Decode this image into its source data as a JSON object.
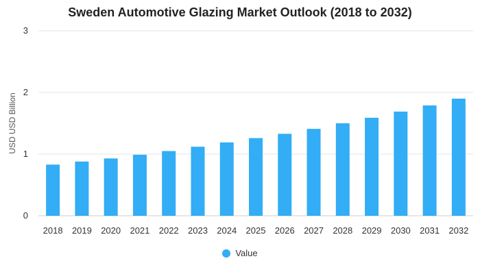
{
  "chart_data": {
    "type": "bar",
    "title": "Sweden Automotive Glazing Market Outlook (2018 to 2032)",
    "xlabel": "",
    "ylabel": "USD USD Billion",
    "categories": [
      "2018",
      "2019",
      "2020",
      "2021",
      "2022",
      "2023",
      "2024",
      "2025",
      "2026",
      "2027",
      "2028",
      "2029",
      "2030",
      "2031",
      "2032"
    ],
    "series": [
      {
        "name": "Value",
        "values": [
          0.83,
          0.88,
          0.93,
          0.99,
          1.05,
          1.12,
          1.19,
          1.26,
          1.33,
          1.41,
          1.5,
          1.59,
          1.69,
          1.79,
          1.9
        ]
      }
    ],
    "ylim": [
      0,
      3
    ],
    "yticks": [
      0,
      1,
      2,
      3
    ],
    "grid": true,
    "legend_position": "bottom",
    "colors": {
      "bar": "#33adf5",
      "grid": "#e6e6e6",
      "axis": "#cccccc"
    }
  }
}
